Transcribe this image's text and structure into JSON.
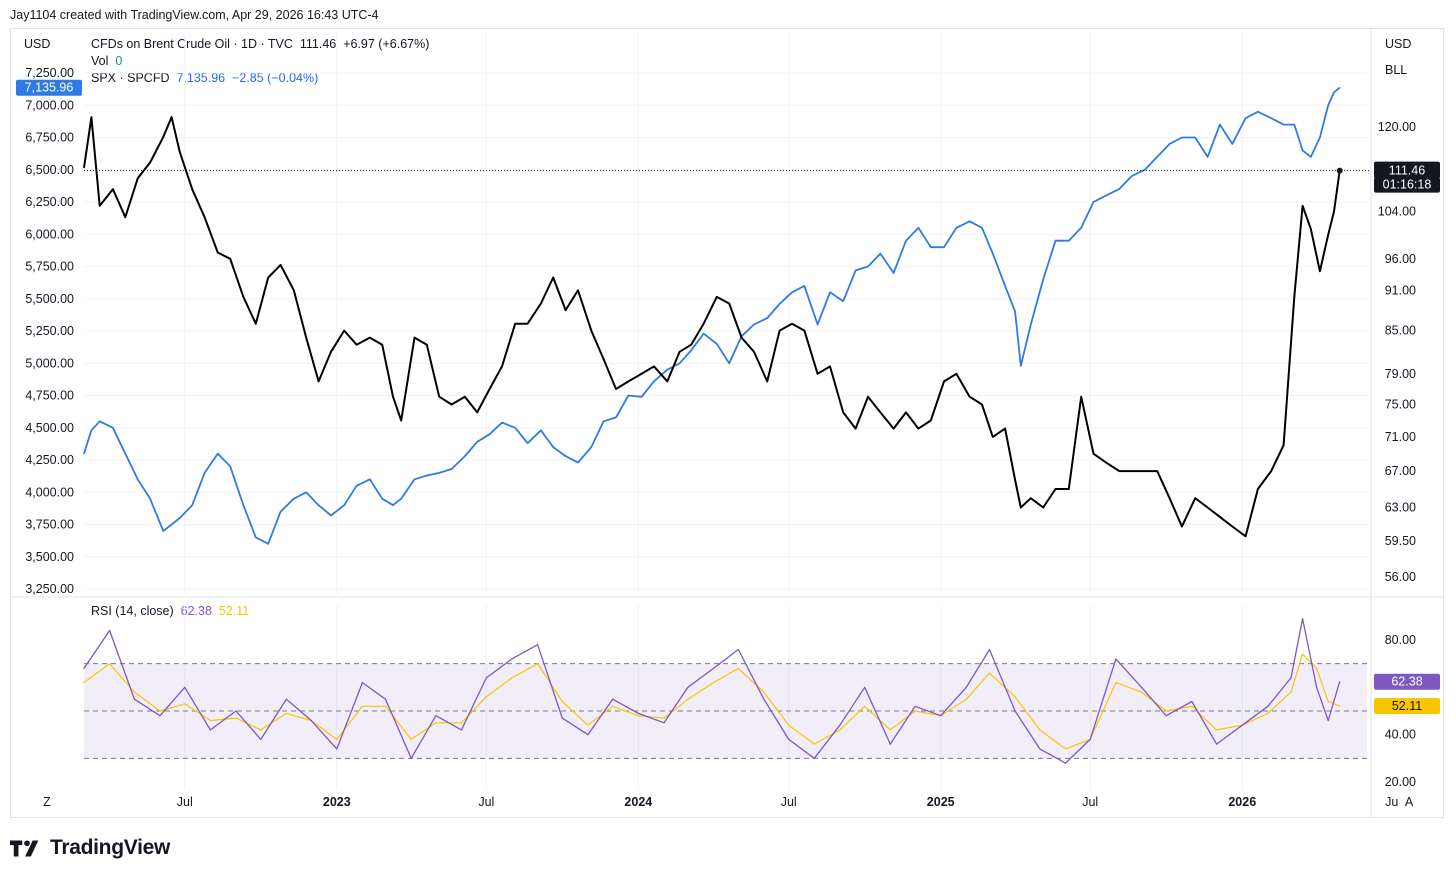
{
  "header": {
    "text": "Jay1104 created with TradingView.com, Apr 29, 2026 16:43 UTC-4"
  },
  "left_unit": "USD",
  "right_units": [
    "USD",
    "BLL"
  ],
  "legend": {
    "main": {
      "symbol": "CFDs on Brent Crude Oil · 1D · TVC",
      "last": "111.46",
      "change": "+6.97 (+6.67%)"
    },
    "vol": {
      "label": "Vol",
      "value": "0"
    },
    "compare": {
      "symbol": "SPX · SPCFD",
      "last": "7,135.96",
      "change": "−2.85 (−0.04%)"
    }
  },
  "rsi_legend": {
    "label": "RSI (14, close)",
    "rsi": "62.38",
    "ma": "52.11"
  },
  "price_labels": {
    "brent_last": "111.46",
    "brent_countdown": "01:16:18",
    "spx_last": "7,135.96",
    "rsi_last": "62.38",
    "rsi_ma_last": "52.11"
  },
  "corner": {
    "left": "Z",
    "right": "A"
  },
  "footer": {
    "brand": "TradingView"
  },
  "colors": {
    "brent": "#000000",
    "spx": "#2f7be6",
    "rsi": "#7e57c2",
    "rsi_ma": "#f7c600",
    "rsi_band": "#7e57c2",
    "frame": "#e0e3eb"
  },
  "chart_data": [
    {
      "type": "line",
      "title": "CFDs on Brent Crude Oil · 1D · TVC vs SPX · SPCFD",
      "x_axis": {
        "ticks": [
          "Jul",
          "2023",
          "Jul",
          "2024",
          "Jul",
          "2025",
          "Jul",
          "2026",
          "Ju"
        ],
        "bold_ticks": [
          "2023",
          "2024",
          "2025",
          "2026"
        ]
      },
      "left_axis": {
        "unit": "USD",
        "ticks": [
          7250,
          7000,
          6750,
          6500,
          6250,
          6000,
          5750,
          5500,
          5250,
          5000,
          4750,
          4500,
          4250,
          4000,
          3750,
          3500,
          3250
        ]
      },
      "right_axis": {
        "unit": "USD / BLL",
        "ticks": [
          120,
          104,
          96,
          91,
          85,
          79,
          75,
          71,
          67,
          63,
          59.5,
          56
        ],
        "scale": "log"
      },
      "x": [
        "2022-03-01",
        "2022-03-10",
        "2022-03-20",
        "2022-04-05",
        "2022-04-20",
        "2022-05-05",
        "2022-05-20",
        "2022-06-05",
        "2022-06-15",
        "2022-06-25",
        "2022-07-10",
        "2022-07-25",
        "2022-08-10",
        "2022-08-25",
        "2022-09-10",
        "2022-09-25",
        "2022-10-10",
        "2022-10-25",
        "2022-11-10",
        "2022-11-25",
        "2022-12-10",
        "2022-12-25",
        "2023-01-10",
        "2023-01-25",
        "2023-02-10",
        "2023-02-25",
        "2023-03-10",
        "2023-03-20",
        "2023-04-05",
        "2023-04-20",
        "2023-05-05",
        "2023-05-20",
        "2023-06-05",
        "2023-06-20",
        "2023-07-05",
        "2023-07-20",
        "2023-08-05",
        "2023-08-20",
        "2023-09-05",
        "2023-09-20",
        "2023-10-05",
        "2023-10-20",
        "2023-11-05",
        "2023-11-20",
        "2023-12-05",
        "2023-12-20",
        "2024-01-05",
        "2024-01-20",
        "2024-02-05",
        "2024-02-20",
        "2024-03-05",
        "2024-03-20",
        "2024-04-05",
        "2024-04-20",
        "2024-05-05",
        "2024-05-20",
        "2024-06-05",
        "2024-06-20",
        "2024-07-05",
        "2024-07-20",
        "2024-08-05",
        "2024-08-20",
        "2024-09-05",
        "2024-09-20",
        "2024-10-05",
        "2024-10-20",
        "2024-11-05",
        "2024-11-20",
        "2024-12-05",
        "2024-12-20",
        "2025-01-05",
        "2025-01-20",
        "2025-02-05",
        "2025-02-20",
        "2025-03-05",
        "2025-03-20",
        "2025-04-01",
        "2025-04-08",
        "2025-04-20",
        "2025-05-05",
        "2025-05-20",
        "2025-06-05",
        "2025-06-20",
        "2025-07-05",
        "2025-07-20",
        "2025-08-05",
        "2025-08-20",
        "2025-09-05",
        "2025-09-20",
        "2025-10-05",
        "2025-10-20",
        "2025-11-05",
        "2025-11-20",
        "2025-12-05",
        "2025-12-20",
        "2026-01-05",
        "2026-01-20",
        "2026-02-05",
        "2026-02-20",
        "2026-03-05",
        "2026-03-15",
        "2026-03-25",
        "2026-04-05",
        "2026-04-15",
        "2026-04-22",
        "2026-04-29"
      ],
      "series": [
        {
          "name": "CFDs on Brent Crude Oil",
          "axis": "right",
          "values": [
            112,
            122,
            105,
            108,
            103,
            110,
            113,
            118,
            122,
            115,
            108,
            103,
            97,
            96,
            90,
            86,
            93,
            95,
            91,
            84,
            78,
            82,
            85,
            83,
            84,
            83,
            76,
            73,
            84,
            83,
            76,
            75,
            76,
            74,
            77,
            80,
            86,
            86,
            89,
            93,
            88,
            91,
            85,
            81,
            77,
            78,
            79,
            80,
            78,
            82,
            83,
            86,
            90,
            89,
            84,
            82,
            78,
            85,
            86,
            85,
            79,
            80,
            74,
            72,
            76,
            74,
            72,
            74,
            72,
            73,
            78,
            79,
            76,
            75,
            71,
            72,
            66,
            63,
            64,
            63,
            65,
            65,
            76,
            69,
            68,
            67,
            67,
            67,
            67,
            64,
            61,
            64,
            63,
            62,
            61,
            60,
            65,
            67,
            70,
            90,
            105,
            101,
            94,
            100,
            104,
            111.46
          ]
        },
        {
          "name": "SPX · SPCFD",
          "axis": "left",
          "values": [
            4300,
            4480,
            4550,
            4500,
            4300,
            4100,
            3950,
            3700,
            3750,
            3800,
            3900,
            4150,
            4300,
            4200,
            3900,
            3650,
            3600,
            3850,
            3950,
            4000,
            3900,
            3820,
            3900,
            4050,
            4100,
            3950,
            3900,
            3950,
            4100,
            4130,
            4150,
            4180,
            4280,
            4390,
            4450,
            4540,
            4500,
            4380,
            4480,
            4350,
            4280,
            4230,
            4350,
            4550,
            4580,
            4750,
            4740,
            4860,
            4950,
            5000,
            5100,
            5230,
            5150,
            5000,
            5210,
            5300,
            5350,
            5460,
            5550,
            5600,
            5300,
            5550,
            5480,
            5720,
            5750,
            5850,
            5700,
            5950,
            6050,
            5900,
            5900,
            6050,
            6100,
            6050,
            5850,
            5600,
            5400,
            4980,
            5300,
            5650,
            5950,
            5950,
            6050,
            6250,
            6300,
            6350,
            6450,
            6500,
            6600,
            6700,
            6750,
            6750,
            6600,
            6850,
            6700,
            6900,
            6950,
            6900,
            6850,
            6850,
            6650,
            6600,
            6750,
            7000,
            7100,
            7135.96
          ]
        }
      ],
      "last_values": {
        "brent": 111.46,
        "spx": 7135.96
      }
    },
    {
      "type": "line",
      "title": "RSI (14, close)",
      "y_axis": {
        "ticks": [
          80,
          40,
          20
        ]
      },
      "bands": {
        "upper": 70,
        "middle": 50,
        "lower": 30
      },
      "x": [
        "2022-03-01",
        "2022-04-01",
        "2022-05-01",
        "2022-06-01",
        "2022-07-01",
        "2022-08-01",
        "2022-09-01",
        "2022-10-01",
        "2022-11-01",
        "2022-12-01",
        "2023-01-01",
        "2023-02-01",
        "2023-03-01",
        "2023-04-01",
        "2023-05-01",
        "2023-06-01",
        "2023-07-01",
        "2023-08-01",
        "2023-09-01",
        "2023-10-01",
        "2023-11-01",
        "2023-12-01",
        "2024-01-01",
        "2024-02-01",
        "2024-03-01",
        "2024-04-01",
        "2024-05-01",
        "2024-06-01",
        "2024-07-01",
        "2024-08-01",
        "2024-09-01",
        "2024-10-01",
        "2024-11-01",
        "2024-12-01",
        "2025-01-01",
        "2025-02-01",
        "2025-03-01",
        "2025-04-01",
        "2025-05-01",
        "2025-06-01",
        "2025-07-01",
        "2025-08-01",
        "2025-09-01",
        "2025-10-01",
        "2025-11-01",
        "2025-12-01",
        "2026-01-01",
        "2026-02-01",
        "2026-03-01",
        "2026-03-15",
        "2026-04-01",
        "2026-04-15",
        "2026-04-29"
      ],
      "series": [
        {
          "name": "RSI",
          "values": [
            68,
            84,
            55,
            48,
            60,
            42,
            50,
            38,
            55,
            46,
            34,
            62,
            55,
            30,
            48,
            42,
            64,
            72,
            78,
            47,
            40,
            55,
            49,
            45,
            60,
            68,
            76,
            55,
            38,
            30,
            44,
            60,
            36,
            52,
            48,
            60,
            76,
            50,
            34,
            28,
            38,
            72,
            60,
            48,
            54,
            36,
            44,
            52,
            64,
            89,
            60,
            46,
            62.38
          ]
        },
        {
          "name": "MA",
          "values": [
            62,
            70,
            58,
            50,
            53,
            46,
            47,
            42,
            49,
            46,
            38,
            52,
            52,
            38,
            45,
            45,
            56,
            64,
            70,
            54,
            44,
            52,
            48,
            47,
            55,
            62,
            68,
            58,
            44,
            36,
            42,
            52,
            42,
            50,
            48,
            55,
            66,
            56,
            42,
            34,
            38,
            62,
            58,
            50,
            52,
            42,
            44,
            49,
            58,
            74,
            68,
            54,
            52.11
          ]
        }
      ],
      "last_values": {
        "rsi": 62.38,
        "ma": 52.11
      }
    }
  ]
}
